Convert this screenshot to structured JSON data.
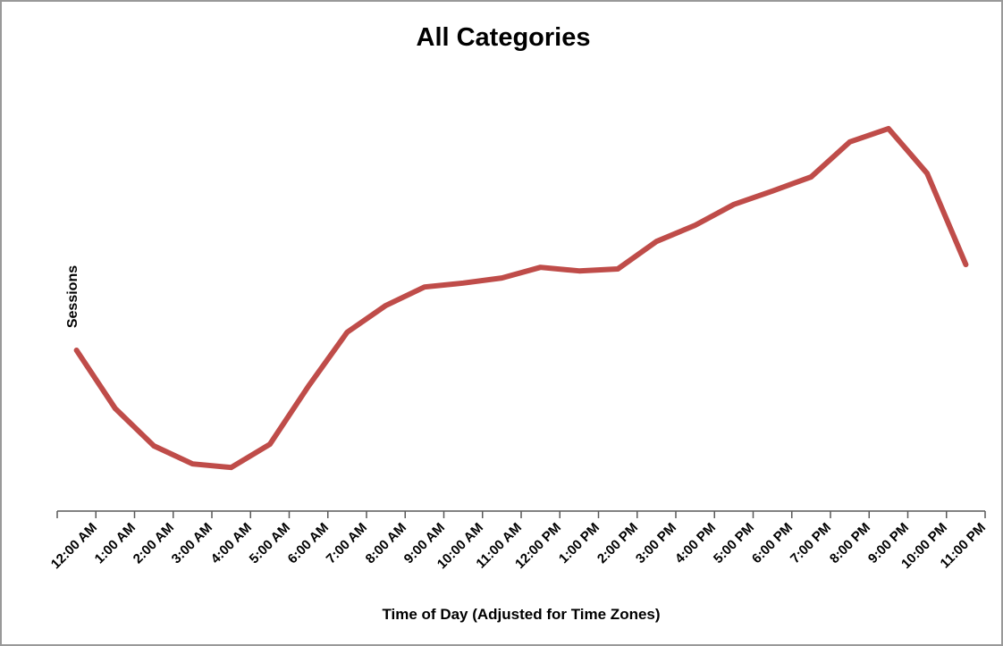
{
  "window": {
    "background": "#ffffff",
    "border_color": "#999999"
  },
  "chart_data": {
    "type": "line",
    "title": "All Categories",
    "xlabel": "Time of Day (Adjusted for Time Zones)",
    "ylabel": "Sessions",
    "categories": [
      "12:00 AM",
      "1:00 AM",
      "2:00 AM",
      "3:00 AM",
      "4:00 AM",
      "5:00 AM",
      "6:00 AM",
      "7:00 AM",
      "8:00 AM",
      "9:00 AM",
      "10:00 AM",
      "11:00 AM",
      "12:00 PM",
      "1:00 PM",
      "2:00 PM",
      "3:00 PM",
      "4:00 PM",
      "5:00 PM",
      "6:00 PM",
      "7:00 PM",
      "8:00 PM",
      "9:00 PM",
      "10:00 PM",
      "11:00 PM"
    ],
    "series": [
      {
        "name": "Sessions",
        "color": "#BF4C49",
        "values": [
          40.9,
          26.1,
          16.6,
          12.0,
          11.1,
          17.0,
          31.8,
          45.5,
          52.3,
          57.0,
          58.0,
          59.3,
          62.0,
          61.1,
          61.6,
          68.6,
          72.7,
          78.0,
          81.4,
          85.0,
          93.9,
          97.3,
          85.9,
          62.7
        ]
      }
    ],
    "ylim": [
      0,
      100
    ],
    "y_tick_labels": [],
    "grid": false,
    "legend": "none",
    "axis_color": "#595959",
    "line_width": 6
  }
}
